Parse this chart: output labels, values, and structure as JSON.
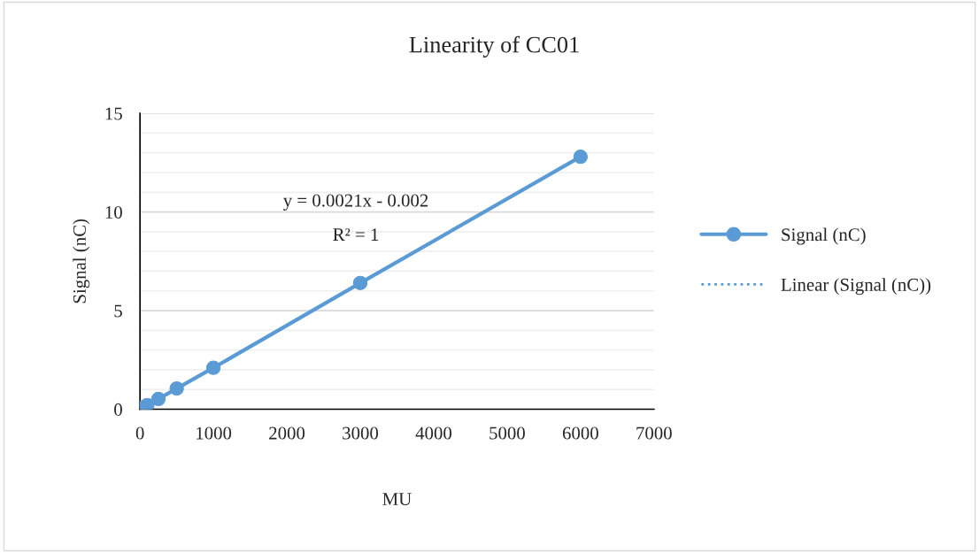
{
  "chart_data": {
    "type": "line",
    "title": "Linearity of CC01",
    "xlabel": "MU",
    "ylabel": "Signal (nC)",
    "series": [
      {
        "name": "Signal (nC)",
        "color": "#5b9bd5",
        "x": [
          10,
          50,
          100,
          250,
          500,
          1000,
          3000,
          6000
        ],
        "values": [
          0.02,
          0.1,
          0.21,
          0.52,
          1.05,
          2.1,
          6.4,
          12.8
        ],
        "marker": "circle",
        "line_style": "solid"
      },
      {
        "name": "Linear (Signal (nC))",
        "color": "#5b9bd5",
        "marker": "none",
        "line_style": "dotted"
      }
    ],
    "annotations": [
      "y = 0.0021x - 0.002",
      "R² = 1"
    ],
    "xlim": [
      0,
      7000
    ],
    "xticks": [
      0,
      1000,
      2000,
      3000,
      4000,
      5000,
      6000,
      7000
    ],
    "ylim": [
      0,
      15
    ],
    "yticks": [
      0,
      5,
      10,
      15
    ],
    "grid": "y",
    "legend": "right"
  }
}
